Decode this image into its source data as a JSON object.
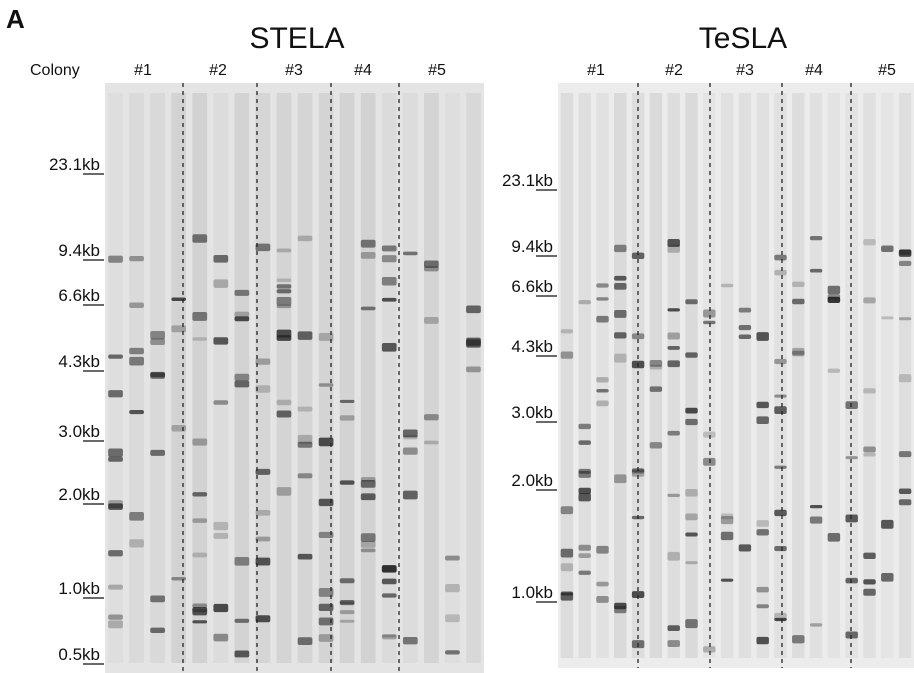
{
  "panel_label": "A",
  "panels": [
    {
      "title": "STELA",
      "row_label": "Colony",
      "lanes": [
        "#1",
        "#2",
        "#3",
        "#4",
        "#5"
      ],
      "markers": [
        "23.1kb",
        "9.4kb",
        "6.6kb",
        "4.3kb",
        "3.0kb",
        "2.0kb",
        "1.0kb",
        "0.5kb"
      ]
    },
    {
      "title": "TeSLA",
      "lanes": [
        "#1",
        "#2",
        "#3",
        "#4",
        "#5"
      ],
      "markers": [
        "23.1kb",
        "9.4kb",
        "6.6kb",
        "4.3kb",
        "3.0kb",
        "2.0kb",
        "1.0kb"
      ]
    }
  ]
}
